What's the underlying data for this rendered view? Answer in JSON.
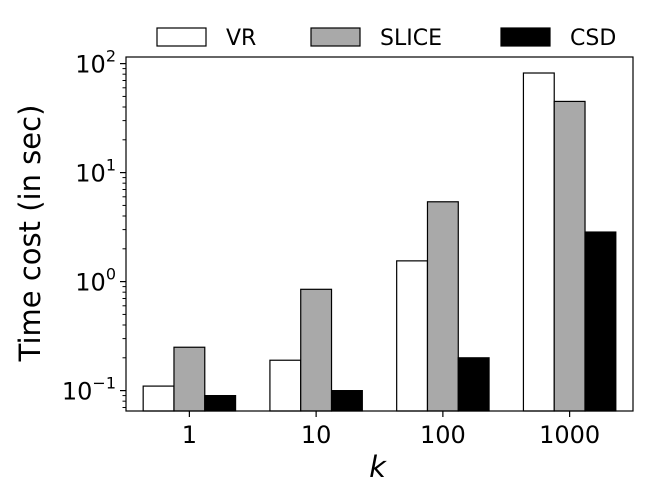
{
  "chart_data": {
    "type": "bar",
    "yscale": "log",
    "categories": [
      "1",
      "10",
      "100",
      "1000"
    ],
    "series": [
      {
        "name": "VR",
        "color": "#ffffff",
        "values": [
          0.11,
          0.19,
          1.55,
          82
        ]
      },
      {
        "name": "SLICE",
        "color": "#a9a9a9",
        "values": [
          0.25,
          0.85,
          5.4,
          45
        ]
      },
      {
        "name": "CSD",
        "color": "#000000",
        "values": [
          0.09,
          0.1,
          0.2,
          2.85
        ]
      }
    ],
    "xlabel": "k",
    "ylabel": "Time cost (in sec)",
    "ylim": [
      0.065,
      115
    ],
    "yticks": [
      {
        "value": 0.1,
        "base": "10",
        "exp": "−1"
      },
      {
        "value": 1,
        "base": "10",
        "exp": "0"
      },
      {
        "value": 10,
        "base": "10",
        "exp": "1"
      },
      {
        "value": 100,
        "base": "10",
        "exp": "2"
      }
    ],
    "legend_position": "top",
    "grid": false
  }
}
